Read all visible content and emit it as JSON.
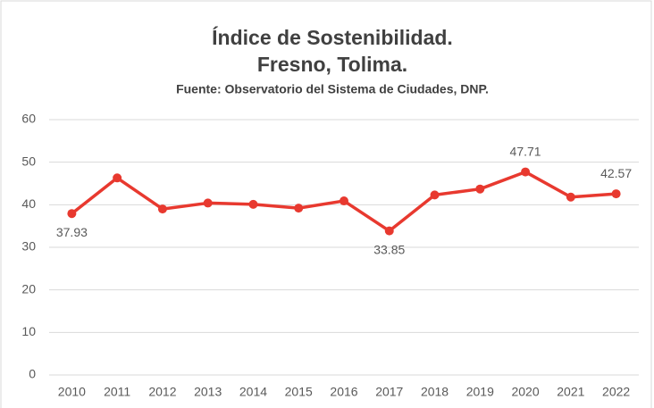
{
  "chart_data": {
    "type": "line",
    "title": [
      "Índice de Sostenibilidad.",
      "Fresno, Tolima."
    ],
    "subtitle": "Fuente: Observatorio del Sistema de Ciudades, DNP.",
    "categories": [
      "2010",
      "2011",
      "2012",
      "2013",
      "2014",
      "2015",
      "2016",
      "2017",
      "2018",
      "2019",
      "2020",
      "2021",
      "2022"
    ],
    "values": [
      37.93,
      46.3,
      39.0,
      40.4,
      40.1,
      39.2,
      40.9,
      33.85,
      42.3,
      43.7,
      47.71,
      41.8,
      42.57
    ],
    "labeled_points": [
      0,
      7,
      10,
      12
    ],
    "color": "#e8392f",
    "ylim": [
      0,
      60
    ],
    "yticks": [
      0,
      10,
      20,
      30,
      40,
      50,
      60
    ],
    "grid": true
  }
}
